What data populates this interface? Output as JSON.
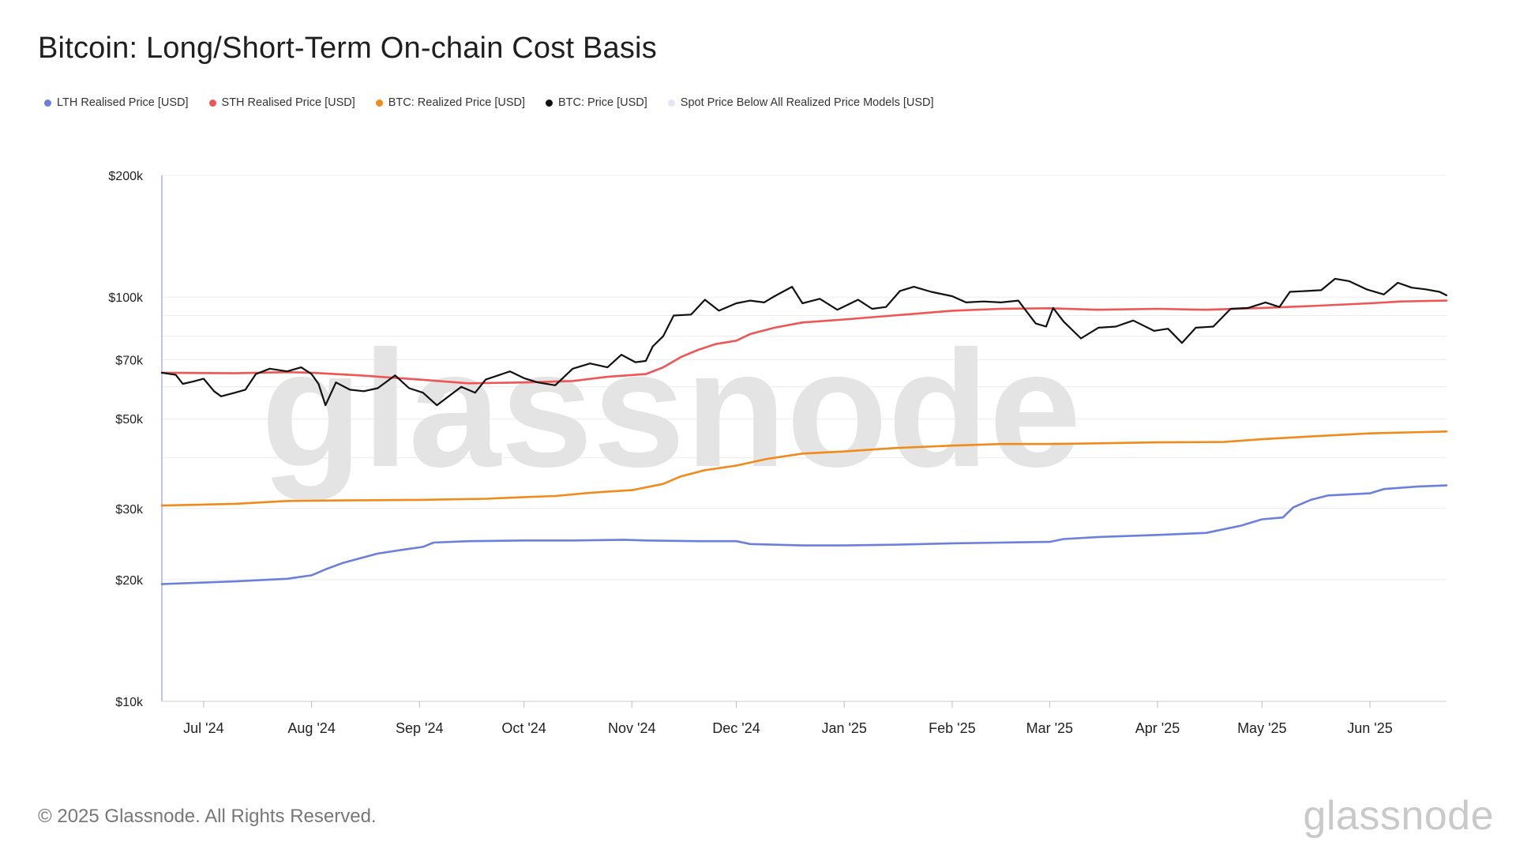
{
  "title": "Bitcoin: Long/Short-Term On-chain Cost Basis",
  "watermark": "glassnode",
  "footer": {
    "copyright": "© 2025 Glassnode. All Rights Reserved.",
    "logo": "glassnode"
  },
  "chart_data": {
    "type": "line",
    "y_scale": "log",
    "ylim": [
      10000,
      200000
    ],
    "y_ticks": [
      {
        "value": 200000,
        "label": "$200k"
      },
      {
        "value": 100000,
        "label": "$100k"
      },
      {
        "value": 70000,
        "label": "$70k"
      },
      {
        "value": 50000,
        "label": "$50k"
      },
      {
        "value": 30000,
        "label": "$30k"
      },
      {
        "value": 20000,
        "label": "$20k"
      },
      {
        "value": 10000,
        "label": "$10k"
      }
    ],
    "xlim": [
      "2024-06-19",
      "2025-06-23"
    ],
    "x_ticks": [
      {
        "date": "2024-07-01",
        "label": "Jul '24"
      },
      {
        "date": "2024-08-01",
        "label": "Aug '24"
      },
      {
        "date": "2024-09-01",
        "label": "Sep '24"
      },
      {
        "date": "2024-10-01",
        "label": "Oct '24"
      },
      {
        "date": "2024-11-01",
        "label": "Nov '24"
      },
      {
        "date": "2024-12-01",
        "label": "Dec '24"
      },
      {
        "date": "2025-01-01",
        "label": "Jan '25"
      },
      {
        "date": "2025-02-01",
        "label": "Feb '25"
      },
      {
        "date": "2025-03-01",
        "label": "Mar '25"
      },
      {
        "date": "2025-04-01",
        "label": "Apr '25"
      },
      {
        "date": "2025-05-01",
        "label": "May '25"
      },
      {
        "date": "2025-06-01",
        "label": "Jun '25"
      }
    ],
    "legend_position": "top-left",
    "series": [
      {
        "name": "LTH Realised Price [USD]",
        "color": "#6b7fdc",
        "points": [
          [
            "2024-06-19",
            19500
          ],
          [
            "2024-07-10",
            19800
          ],
          [
            "2024-07-25",
            20100
          ],
          [
            "2024-08-01",
            20500
          ],
          [
            "2024-08-05",
            21200
          ],
          [
            "2024-08-10",
            22000
          ],
          [
            "2024-08-15",
            22600
          ],
          [
            "2024-08-20",
            23200
          ],
          [
            "2024-08-27",
            23700
          ],
          [
            "2024-09-02",
            24100
          ],
          [
            "2024-09-05",
            24700
          ],
          [
            "2024-09-15",
            24900
          ],
          [
            "2024-10-01",
            25000
          ],
          [
            "2024-10-15",
            25000
          ],
          [
            "2024-10-30",
            25100
          ],
          [
            "2024-11-05",
            25000
          ],
          [
            "2024-11-20",
            24900
          ],
          [
            "2024-12-01",
            24900
          ],
          [
            "2024-12-05",
            24500
          ],
          [
            "2024-12-20",
            24300
          ],
          [
            "2025-01-01",
            24300
          ],
          [
            "2025-01-15",
            24400
          ],
          [
            "2025-02-01",
            24600
          ],
          [
            "2025-02-15",
            24700
          ],
          [
            "2025-03-01",
            24800
          ],
          [
            "2025-03-05",
            25200
          ],
          [
            "2025-03-15",
            25500
          ],
          [
            "2025-04-01",
            25800
          ],
          [
            "2025-04-15",
            26100
          ],
          [
            "2025-04-25",
            27200
          ],
          [
            "2025-05-01",
            28200
          ],
          [
            "2025-05-07",
            28500
          ],
          [
            "2025-05-10",
            30200
          ],
          [
            "2025-05-15",
            31500
          ],
          [
            "2025-05-20",
            32300
          ],
          [
            "2025-06-01",
            32700
          ],
          [
            "2025-06-05",
            33500
          ],
          [
            "2025-06-15",
            34000
          ],
          [
            "2025-06-23",
            34200
          ]
        ]
      },
      {
        "name": "STH Realised Price [USD]",
        "color": "#f05555",
        "points": [
          [
            "2024-06-19",
            65000
          ],
          [
            "2024-07-10",
            64800
          ],
          [
            "2024-07-25",
            65200
          ],
          [
            "2024-08-01",
            65000
          ],
          [
            "2024-08-15",
            64000
          ],
          [
            "2024-09-01",
            62500
          ],
          [
            "2024-09-15",
            61200
          ],
          [
            "2024-10-01",
            61500
          ],
          [
            "2024-10-15",
            62000
          ],
          [
            "2024-10-25",
            63500
          ],
          [
            "2024-11-05",
            64500
          ],
          [
            "2024-11-10",
            67000
          ],
          [
            "2024-11-15",
            71000
          ],
          [
            "2024-11-20",
            74000
          ],
          [
            "2024-11-25",
            76500
          ],
          [
            "2024-12-01",
            78000
          ],
          [
            "2024-12-05",
            81000
          ],
          [
            "2024-12-12",
            84000
          ],
          [
            "2024-12-20",
            86500
          ],
          [
            "2025-01-01",
            88000
          ],
          [
            "2025-01-15",
            90000
          ],
          [
            "2025-02-01",
            92500
          ],
          [
            "2025-02-15",
            93500
          ],
          [
            "2025-03-01",
            93800
          ],
          [
            "2025-03-15",
            93000
          ],
          [
            "2025-04-01",
            93500
          ],
          [
            "2025-04-15",
            93000
          ],
          [
            "2025-05-01",
            94000
          ],
          [
            "2025-05-15",
            95000
          ],
          [
            "2025-06-01",
            96500
          ],
          [
            "2025-06-10",
            97500
          ],
          [
            "2025-06-23",
            98000
          ]
        ]
      },
      {
        "name": "BTC: Realized Price [USD]",
        "color": "#f28a1a",
        "points": [
          [
            "2024-06-19",
            30500
          ],
          [
            "2024-07-10",
            30800
          ],
          [
            "2024-07-25",
            31300
          ],
          [
            "2024-08-10",
            31400
          ],
          [
            "2024-09-01",
            31500
          ],
          [
            "2024-09-20",
            31700
          ],
          [
            "2024-10-01",
            32000
          ],
          [
            "2024-10-10",
            32200
          ],
          [
            "2024-10-20",
            32800
          ],
          [
            "2024-11-01",
            33300
          ],
          [
            "2024-11-10",
            34500
          ],
          [
            "2024-11-15",
            36000
          ],
          [
            "2024-11-22",
            37300
          ],
          [
            "2024-12-01",
            38300
          ],
          [
            "2024-12-10",
            39800
          ],
          [
            "2024-12-20",
            41000
          ],
          [
            "2025-01-01",
            41500
          ],
          [
            "2025-01-15",
            42300
          ],
          [
            "2025-02-01",
            42900
          ],
          [
            "2025-02-15",
            43300
          ],
          [
            "2025-03-01",
            43300
          ],
          [
            "2025-04-01",
            43700
          ],
          [
            "2025-04-20",
            43800
          ],
          [
            "2025-05-01",
            44500
          ],
          [
            "2025-05-15",
            45200
          ],
          [
            "2025-06-01",
            46000
          ],
          [
            "2025-06-23",
            46500
          ]
        ]
      },
      {
        "name": "BTC: Price [USD]",
        "color": "#111111",
        "points": [
          [
            "2024-06-19",
            65000
          ],
          [
            "2024-06-23",
            64200
          ],
          [
            "2024-06-25",
            61000
          ],
          [
            "2024-06-28",
            61800
          ],
          [
            "2024-07-01",
            62800
          ],
          [
            "2024-07-04",
            58500
          ],
          [
            "2024-07-06",
            56800
          ],
          [
            "2024-07-10",
            58000
          ],
          [
            "2024-07-13",
            59000
          ],
          [
            "2024-07-16",
            64500
          ],
          [
            "2024-07-20",
            66500
          ],
          [
            "2024-07-25",
            65500
          ],
          [
            "2024-07-29",
            67000
          ],
          [
            "2024-08-01",
            64500
          ],
          [
            "2024-08-03",
            61000
          ],
          [
            "2024-08-05",
            54000
          ],
          [
            "2024-08-08",
            61500
          ],
          [
            "2024-08-12",
            59000
          ],
          [
            "2024-08-16",
            58500
          ],
          [
            "2024-08-20",
            59500
          ],
          [
            "2024-08-25",
            64000
          ],
          [
            "2024-08-29",
            59500
          ],
          [
            "2024-09-02",
            58000
          ],
          [
            "2024-09-06",
            54000
          ],
          [
            "2024-09-09",
            56500
          ],
          [
            "2024-09-13",
            60000
          ],
          [
            "2024-09-17",
            58000
          ],
          [
            "2024-09-20",
            62500
          ],
          [
            "2024-09-27",
            65500
          ],
          [
            "2024-10-01",
            63000
          ],
          [
            "2024-10-05",
            61500
          ],
          [
            "2024-10-10",
            60500
          ],
          [
            "2024-10-15",
            66500
          ],
          [
            "2024-10-20",
            68500
          ],
          [
            "2024-10-25",
            67000
          ],
          [
            "2024-10-29",
            72000
          ],
          [
            "2024-11-02",
            69000
          ],
          [
            "2024-11-05",
            69500
          ],
          [
            "2024-11-07",
            75500
          ],
          [
            "2024-11-10",
            80000
          ],
          [
            "2024-11-13",
            90000
          ],
          [
            "2024-11-18",
            90500
          ],
          [
            "2024-11-22",
            98500
          ],
          [
            "2024-11-26",
            92500
          ],
          [
            "2024-12-01",
            96500
          ],
          [
            "2024-12-05",
            98000
          ],
          [
            "2024-12-09",
            97000
          ],
          [
            "2024-12-12",
            100500
          ],
          [
            "2024-12-17",
            106000
          ],
          [
            "2024-12-20",
            96500
          ],
          [
            "2024-12-25",
            99000
          ],
          [
            "2024-12-30",
            93000
          ],
          [
            "2025-01-05",
            98500
          ],
          [
            "2025-01-09",
            93500
          ],
          [
            "2025-01-13",
            94500
          ],
          [
            "2025-01-17",
            103500
          ],
          [
            "2025-01-21",
            106000
          ],
          [
            "2025-01-26",
            103000
          ],
          [
            "2025-02-01",
            100500
          ],
          [
            "2025-02-05",
            97000
          ],
          [
            "2025-02-10",
            97500
          ],
          [
            "2025-02-15",
            97000
          ],
          [
            "2025-02-20",
            98000
          ],
          [
            "2025-02-25",
            86000
          ],
          [
            "2025-02-28",
            84500
          ],
          [
            "2025-03-02",
            94000
          ],
          [
            "2025-03-05",
            87000
          ],
          [
            "2025-03-10",
            79000
          ],
          [
            "2025-03-15",
            84000
          ],
          [
            "2025-03-20",
            84500
          ],
          [
            "2025-03-25",
            87500
          ],
          [
            "2025-03-31",
            82500
          ],
          [
            "2025-04-04",
            83500
          ],
          [
            "2025-04-08",
            77000
          ],
          [
            "2025-04-12",
            84000
          ],
          [
            "2025-04-17",
            84500
          ],
          [
            "2025-04-22",
            93500
          ],
          [
            "2025-04-27",
            94000
          ],
          [
            "2025-05-02",
            97000
          ],
          [
            "2025-05-06",
            94500
          ],
          [
            "2025-05-09",
            103000
          ],
          [
            "2025-05-14",
            103500
          ],
          [
            "2025-05-18",
            104000
          ],
          [
            "2025-05-22",
            111000
          ],
          [
            "2025-05-26",
            109500
          ],
          [
            "2025-05-31",
            104500
          ],
          [
            "2025-06-05",
            101500
          ],
          [
            "2025-06-09",
            108500
          ],
          [
            "2025-06-13",
            105500
          ],
          [
            "2025-06-17",
            104500
          ],
          [
            "2025-06-21",
            103000
          ],
          [
            "2025-06-23",
            101000
          ]
        ]
      },
      {
        "name": "Spot Price Below All Realized Price Models [USD]",
        "color": "#e6e3f7",
        "points": []
      }
    ]
  }
}
